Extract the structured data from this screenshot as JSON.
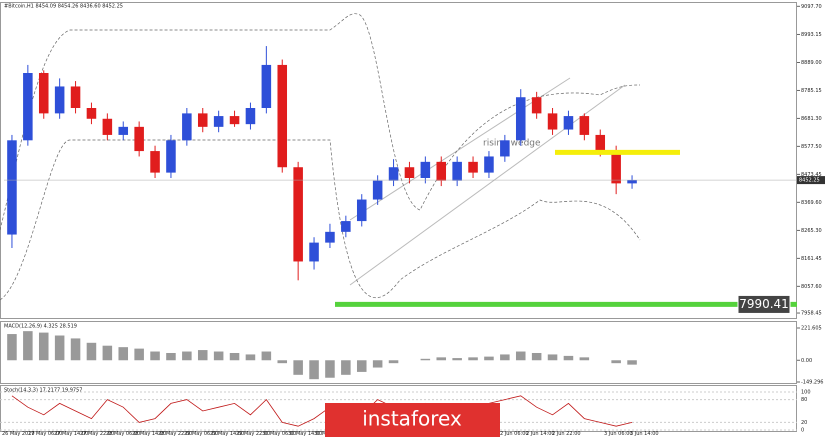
{
  "chart_data": {
    "type": "candlestick",
    "title": "#Bitcoin,H1 8454.09 8454.26 8436.60 8452.25",
    "annotation": "rising wedge",
    "watermark": "instaforex",
    "open": [
      8250,
      8600,
      8850,
      8700,
      8800,
      8720,
      8680,
      8620,
      8650,
      8560,
      8480,
      8600,
      8700,
      8650,
      8690,
      8660,
      8720,
      8880,
      8500,
      8150,
      8220,
      8260,
      8300,
      8380,
      8450,
      8500,
      8460,
      8520,
      8450,
      8520,
      8480,
      8540,
      8600,
      8760,
      8700,
      8640,
      8690,
      8620,
      8560,
      8440
    ],
    "high": [
      8620,
      8880,
      8860,
      8830,
      8820,
      8740,
      8700,
      8670,
      8670,
      8580,
      8620,
      8720,
      8720,
      8710,
      8710,
      8740,
      8950,
      8900,
      8520,
      8240,
      8290,
      8320,
      8400,
      8470,
      8530,
      8520,
      8540,
      8540,
      8540,
      8540,
      8560,
      8620,
      8790,
      8780,
      8720,
      8710,
      8700,
      8640,
      8580,
      8470
    ],
    "low": [
      8200,
      8580,
      8680,
      8680,
      8700,
      8660,
      8600,
      8600,
      8540,
      8460,
      8460,
      8580,
      8630,
      8630,
      8650,
      8640,
      8700,
      8480,
      8080,
      8120,
      8200,
      8240,
      8280,
      8360,
      8430,
      8440,
      8440,
      8430,
      8430,
      8460,
      8460,
      8520,
      8580,
      8680,
      8620,
      8620,
      8600,
      8540,
      8400,
      8420
    ],
    "close": [
      8600,
      8850,
      8700,
      8800,
      8720,
      8680,
      8620,
      8650,
      8560,
      8480,
      8600,
      8700,
      8650,
      8690,
      8660,
      8720,
      8880,
      8500,
      8150,
      8220,
      8260,
      8300,
      8380,
      8450,
      8500,
      8460,
      8520,
      8450,
      8520,
      8480,
      8540,
      8600,
      8760,
      8700,
      8640,
      8690,
      8620,
      8560,
      8440,
      8452.25
    ],
    "up_color": "#2e4fd8",
    "down_color": "#e01d1d",
    "ylim": [
      7940,
      9110
    ],
    "yticks": [
      {
        "value": 9097.7,
        "label": "9097.70"
      },
      {
        "value": 8993.15,
        "label": "8993.15"
      },
      {
        "value": 8889,
        "label": "8889.00"
      },
      {
        "value": 8785.15,
        "label": "8785.15"
      },
      {
        "value": 8681.3,
        "label": "8681.30"
      },
      {
        "value": 8577.5,
        "label": "8577.50"
      },
      {
        "value": 8473.45,
        "label": "8473.45"
      },
      {
        "value": 8369.6,
        "label": "8369.60"
      },
      {
        "value": 8265.3,
        "label": "8265.30"
      },
      {
        "value": 8161.45,
        "label": "8161.45"
      },
      {
        "value": 8057.6,
        "label": "8057.60"
      },
      {
        "value": 7958.45,
        "label": "7958.45"
      }
    ],
    "current_price": 8452.25,
    "support_level": 7990.41,
    "support_color": "#55d23c",
    "resistance_level": 8555,
    "resistance_color": "#f5ee0a",
    "x_labels": [
      "26 May 2019",
      "27 May 06:00",
      "27 May 14:00",
      "27 May 22:00",
      "28 May 06:00",
      "28 May 14:00",
      "28 May 22:00",
      "29 May 06:00",
      "29 May 14:00",
      "29 May 22:00",
      "30 May 06:00",
      "30 May 14:00",
      "30 May 22:00",
      "2 Jun 06:00",
      "2 Jun 14:00",
      "2 Jun 22:00",
      "3 Jun 06:00",
      "3 Jun 14:00"
    ],
    "macd": {
      "label": "MACD(12,26,9) 4.325 28.519",
      "values": [
        180,
        200,
        190,
        170,
        150,
        120,
        100,
        90,
        80,
        60,
        50,
        60,
        70,
        60,
        50,
        40,
        60,
        -20,
        -100,
        -130,
        -120,
        -100,
        -80,
        -50,
        -20,
        0,
        10,
        20,
        15,
        20,
        25,
        40,
        60,
        50,
        40,
        30,
        20,
        0,
        -20,
        -30
      ],
      "ylim": [
        -149.296,
        221.605
      ],
      "yticks": [
        {
          "value": 221.605,
          "label": "221.605"
        },
        {
          "value": 0,
          "label": "0.00"
        },
        {
          "value": -149.296,
          "label": "-149.296"
        }
      ]
    },
    "stoch": {
      "label": "Stoch(14,3,3) 17.2177 19.9757",
      "values": [
        90,
        60,
        40,
        70,
        50,
        30,
        80,
        60,
        20,
        30,
        70,
        80,
        50,
        60,
        70,
        40,
        80,
        20,
        10,
        30,
        60,
        70,
        40,
        80,
        60,
        30,
        70,
        50,
        60,
        40,
        70,
        80,
        90,
        60,
        40,
        70,
        30,
        20,
        10,
        20
      ],
      "ylim": [
        0,
        100
      ],
      "yticks": [
        100,
        80,
        20,
        0
      ]
    }
  }
}
